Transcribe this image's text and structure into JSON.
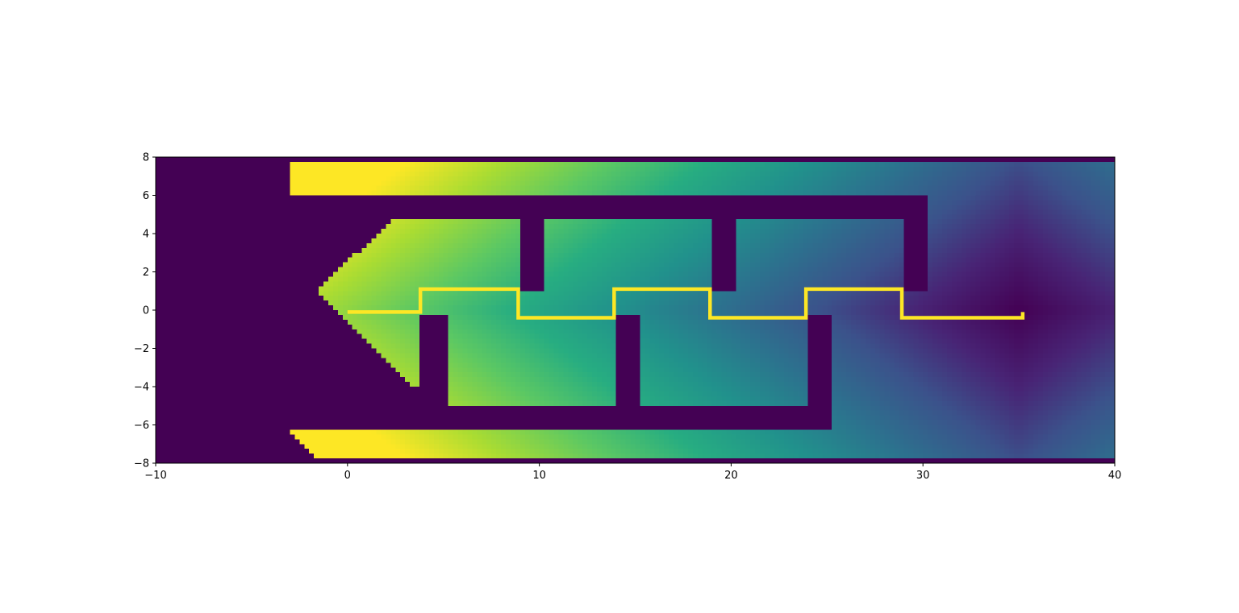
{
  "chart_data": {
    "type": "heatmap",
    "title": "",
    "xlabel": "",
    "ylabel": "",
    "xlim": [
      -10,
      40
    ],
    "ylim": [
      -8,
      8
    ],
    "xticks": [
      -10,
      0,
      10,
      20,
      30,
      40
    ],
    "yticks": [
      -8,
      -6,
      -4,
      -2,
      0,
      2,
      4,
      6,
      8
    ],
    "xtick_labels": [
      "−10",
      "0",
      "10",
      "20",
      "30",
      "40"
    ],
    "ytick_labels": [
      "−8",
      "−6",
      "−4",
      "−2",
      "0",
      "2",
      "4",
      "6",
      "8"
    ],
    "colormap": "viridis",
    "background_color": "#440154",
    "field": {
      "description": "distance-to-goal field inside a serpentine corridor",
      "goal": [
        35,
        0
      ],
      "max_value": 42
    },
    "regions": [
      {
        "name": "top-channel",
        "x": [
          -3,
          40
        ],
        "y": [
          6,
          7.75
        ]
      },
      {
        "name": "bottom-channel",
        "x": [
          -3,
          40
        ],
        "y": [
          -7.75,
          -6.25
        ]
      },
      {
        "name": "open-right",
        "x": [
          30.25,
          40
        ],
        "y": [
          -6.25,
          6
        ]
      },
      {
        "name": "open-right-lower",
        "x": [
          25.25,
          30.25
        ],
        "y": [
          -6.25,
          -0.25
        ]
      },
      {
        "name": "entry-upper",
        "x": [
          -1.5,
          9
        ],
        "y": [
          -0.25,
          4.75
        ]
      },
      {
        "name": "entry-lower",
        "x": [
          -0.5,
          3.75
        ],
        "y": [
          -4,
          -0.25
        ]
      },
      {
        "name": "cell-1",
        "x": [
          5.25,
          14
        ],
        "y": [
          -5,
          1
        ]
      },
      {
        "name": "cell-2",
        "x": [
          10.25,
          19
        ],
        "y": [
          -0.25,
          4.75
        ]
      },
      {
        "name": "cell-3",
        "x": [
          15.25,
          24
        ],
        "y": [
          -5,
          1
        ]
      },
      {
        "name": "cell-4",
        "x": [
          20.25,
          29
        ],
        "y": [
          -0.25,
          4.75
        ]
      },
      {
        "name": "cell-5",
        "x": [
          25.25,
          30.25
        ],
        "y": [
          -0.25,
          1
        ]
      }
    ],
    "series": [
      {
        "type": "line",
        "color": "#fde725",
        "x": [
          0,
          3.8,
          3.8,
          8.9,
          8.9,
          13.9,
          13.9,
          18.9,
          18.9,
          23.9,
          23.9,
          28.9,
          28.9,
          35.2,
          35.2
        ],
        "y": [
          -0.1,
          -0.1,
          1.1,
          1.1,
          -0.4,
          -0.4,
          1.1,
          1.1,
          -0.4,
          -0.4,
          1.1,
          1.1,
          -0.4,
          -0.4,
          -0.1
        ]
      }
    ]
  }
}
